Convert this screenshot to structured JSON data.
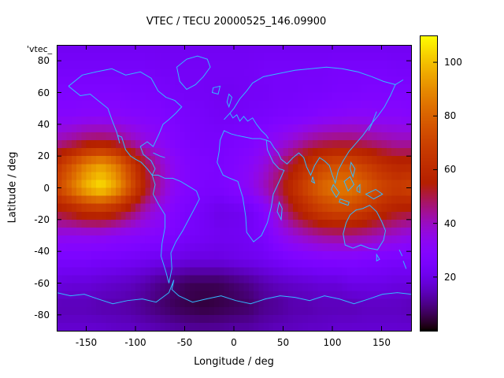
{
  "key_label": "'vtec_",
  "colors": {
    "background": "#ffffff",
    "frame": "#000000",
    "coastline": "#33bbff"
  },
  "axes": {
    "x_ticks": [
      -150,
      -100,
      -50,
      0,
      50,
      100,
      150
    ],
    "y_ticks": [
      80,
      60,
      40,
      20,
      0,
      -20,
      -40,
      -60,
      -80
    ],
    "xlim": [
      -180,
      180
    ],
    "ylim": [
      -90,
      90
    ]
  },
  "colorbar": {
    "ticks": [
      20,
      40,
      60,
      80,
      100
    ],
    "range": [
      0,
      110
    ],
    "palette": "gnuplot-pm3d"
  },
  "chart_data": {
    "type": "heatmap",
    "title": "VTEC / TECU 20000525_146.09900",
    "xlabel": "Longitude / deg",
    "ylabel": "Latitude / deg",
    "units": "TECU",
    "xlim": [
      -180,
      180
    ],
    "ylim": [
      -90,
      90
    ],
    "clim": [
      0,
      110
    ],
    "lons": [
      -180,
      -165,
      -150,
      -135,
      -120,
      -105,
      -90,
      -75,
      -60,
      -45,
      -30,
      -15,
      0,
      15,
      30,
      45,
      60,
      75,
      90,
      105,
      120,
      135,
      150,
      165,
      180
    ],
    "lats": [
      90,
      75,
      60,
      45,
      30,
      15,
      0,
      -15,
      -30,
      -45,
      -60,
      -75,
      -90
    ],
    "values": [
      [
        22,
        22,
        22,
        22,
        22,
        22,
        22,
        22,
        22,
        22,
        22,
        22,
        22,
        22,
        22,
        22,
        22,
        22,
        22,
        22,
        22,
        22,
        22,
        22,
        22
      ],
      [
        24,
        24,
        24,
        24,
        24,
        24,
        24,
        23,
        23,
        23,
        23,
        23,
        23,
        23,
        24,
        24,
        24,
        24,
        24,
        25,
        25,
        25,
        25,
        24,
        24
      ],
      [
        27,
        27,
        27,
        27,
        27,
        26,
        26,
        25,
        24,
        23,
        23,
        22,
        22,
        23,
        23,
        24,
        24,
        25,
        25,
        26,
        26,
        27,
        27,
        27,
        27
      ],
      [
        30,
        30,
        31,
        31,
        31,
        30,
        29,
        28,
        26,
        25,
        24,
        23,
        23,
        24,
        25,
        26,
        27,
        28,
        30,
        31,
        32,
        32,
        31,
        31,
        30
      ],
      [
        41,
        44,
        48,
        49,
        47,
        41,
        36,
        32,
        28,
        26,
        25,
        25,
        26,
        27,
        30,
        34,
        38,
        43,
        46,
        47,
        47,
        45,
        43,
        41,
        41
      ],
      [
        64,
        76,
        88,
        94,
        86,
        69,
        51,
        40,
        32,
        28,
        27,
        26,
        28,
        31,
        36,
        44,
        53,
        63,
        70,
        74,
        73,
        68,
        62,
        58,
        58
      ],
      [
        71,
        85,
        99,
        106,
        96,
        76,
        55,
        42,
        32,
        28,
        26,
        26,
        29,
        33,
        40,
        49,
        62,
        73,
        82,
        87,
        86,
        79,
        72,
        68,
        71
      ],
      [
        52,
        56,
        61,
        62,
        58,
        49,
        40,
        34,
        28,
        25,
        23,
        20,
        21,
        22,
        28,
        40,
        52,
        61,
        68,
        71,
        70,
        65,
        59,
        54,
        52
      ],
      [
        35,
        34,
        34,
        34,
        32,
        31,
        30,
        29,
        26,
        24,
        23,
        22,
        22,
        23,
        25,
        32,
        37,
        41,
        44,
        45,
        45,
        43,
        40,
        38,
        35
      ],
      [
        25,
        25,
        25,
        24,
        24,
        23,
        22,
        21,
        20,
        19,
        19,
        19,
        20,
        21,
        22,
        24,
        26,
        27,
        28,
        28,
        28,
        27,
        26,
        25,
        25
      ],
      [
        19,
        18,
        18,
        17,
        16,
        15,
        13,
        10,
        8,
        6,
        6,
        6,
        8,
        10,
        13,
        15,
        16,
        17,
        18,
        18,
        20,
        20,
        20,
        19,
        19
      ],
      [
        14,
        14,
        14,
        13,
        13,
        12,
        10,
        8,
        6,
        5,
        4,
        5,
        6,
        7,
        10,
        11,
        13,
        13,
        14,
        14,
        14,
        15,
        15,
        15,
        14
      ],
      [
        17,
        17,
        17,
        17,
        16,
        16,
        15,
        14,
        13,
        12,
        12,
        12,
        13,
        13,
        14,
        15,
        15,
        16,
        16,
        17,
        17,
        17,
        17,
        17,
        17
      ]
    ]
  }
}
